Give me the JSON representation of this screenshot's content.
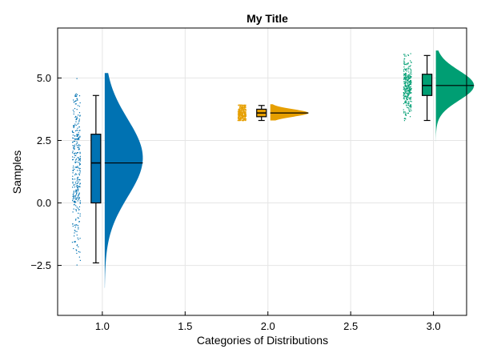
{
  "chart_data": {
    "type": "raincloud",
    "title": "My Title",
    "xlabel": "Categories of Distributions",
    "ylabel": "Samples",
    "xlim": [
      0.73,
      3.2
    ],
    "ylim": [
      -4.5,
      7.0
    ],
    "xticks": [
      1.0,
      1.5,
      2.0,
      2.5,
      3.0
    ],
    "xtick_labels": [
      "1.0",
      "1.5",
      "2.0",
      "2.5",
      "3.0"
    ],
    "yticks": [
      -2.5,
      0.0,
      2.5,
      5.0
    ],
    "ytick_labels": [
      "−2.5",
      "0.0",
      "2.5",
      "5.0"
    ],
    "grid": true,
    "categories": [
      {
        "x": 1.0,
        "color": "#0072B2",
        "box": {
          "min": -2.4,
          "q1": 0.0,
          "median": 1.6,
          "q3": 2.75,
          "max": 4.3
        },
        "range": [
          -3.4,
          5.2
        ],
        "density": {
          "peak": 1.8,
          "spread": 1.55
        }
      },
      {
        "x": 2.0,
        "color": "#E69F00",
        "box": {
          "min": 3.3,
          "q1": 3.45,
          "median": 3.6,
          "q3": 3.75,
          "max": 3.9
        },
        "range": [
          3.3,
          3.95
        ],
        "density": {
          "peak": 3.6,
          "spread": 0.15
        }
      },
      {
        "x": 3.0,
        "color": "#009E73",
        "box": {
          "min": 3.3,
          "q1": 4.3,
          "median": 4.7,
          "q3": 5.15,
          "max": 5.9
        },
        "range": [
          2.4,
          6.1
        ],
        "density": {
          "peak": 4.7,
          "spread": 0.6
        }
      }
    ]
  }
}
